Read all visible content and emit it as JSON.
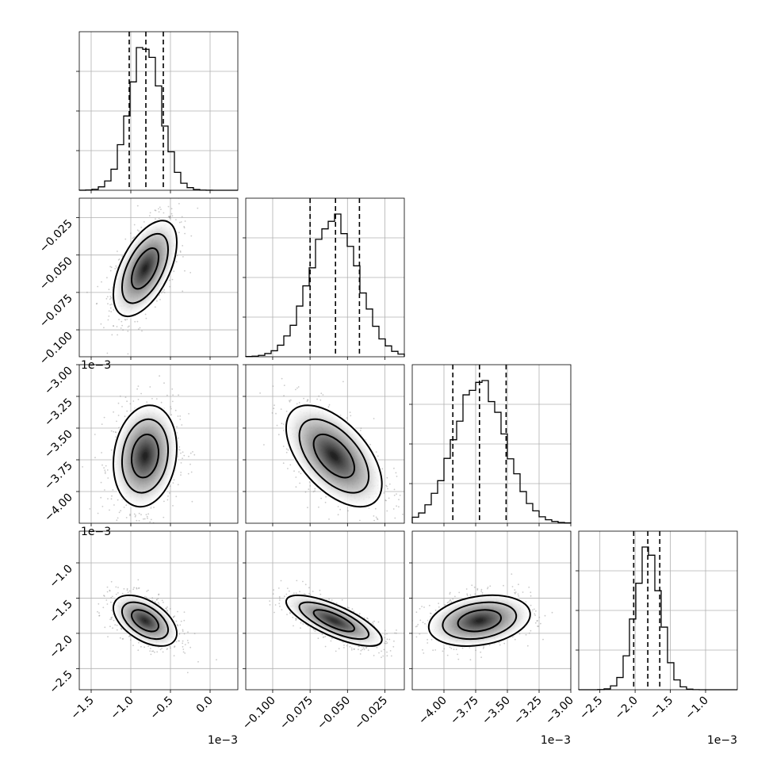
{
  "chart_data": {
    "type": "corner",
    "parameters": [
      {
        "range": [
          -0.00165,
          0.00035
        ],
        "ticks": [
          -0.0015,
          -0.001,
          -0.0005,
          0.0
        ],
        "tick_labels": [
          "−1.5",
          "−1.0",
          "−0.5",
          "0.0"
        ],
        "offset_text": "1e−3",
        "mean": -0.00082,
        "sd": 0.0002,
        "quantiles": [
          -0.00102,
          -0.00081,
          -0.00059
        ]
      },
      {
        "range": [
          -0.118,
          -0.012
        ],
        "ticks": [
          -0.1,
          -0.075,
          -0.05,
          -0.025
        ],
        "tick_labels": [
          "−0.100",
          "−0.075",
          "−0.050",
          "−0.025"
        ],
        "offset_text": "",
        "mean": -0.059,
        "sd": 0.016,
        "quantiles": [
          -0.075,
          -0.058,
          -0.042
        ]
      },
      {
        "range": [
          -0.00425,
          -0.003
        ],
        "ticks": [
          -0.004,
          -0.00375,
          -0.0035,
          -0.00325,
          -0.003
        ],
        "tick_labels": [
          "−4.00",
          "−3.75",
          "−3.50",
          "−3.25",
          "−3.00"
        ],
        "offset_text": "1e−3",
        "mean": -0.00372,
        "sd": 0.0002,
        "quantiles": [
          -0.00393,
          -0.00372,
          -0.00351
        ]
      },
      {
        "range": [
          -0.0028,
          -0.00055
        ],
        "ticks": [
          -0.0025,
          -0.002,
          -0.0015,
          -0.001
        ],
        "tick_labels": [
          "−2.5",
          "−2.0",
          "−1.5",
          "−1.0"
        ],
        "offset_text": "1e−3",
        "mean": -0.00182,
        "sd": 0.00018,
        "quantiles": [
          -0.00202,
          -0.00182,
          -0.00165
        ]
      }
    ],
    "y_tick_labels": [
      null,
      [
        "−0.025",
        "−0.050",
        "−0.075",
        "−0.100"
      ],
      [
        "−3.00",
        "−3.25",
        "−3.50",
        "−3.75",
        "−4.00"
      ],
      [
        "−1.0",
        "−1.5",
        "−2.0",
        "−2.5"
      ]
    ],
    "correlations": {
      "1,0": 0.55,
      "2,0": 0.15,
      "2,1": -0.55,
      "3,0": -0.5,
      "3,1": -0.75,
      "3,2": 0.25
    },
    "grid": true
  }
}
